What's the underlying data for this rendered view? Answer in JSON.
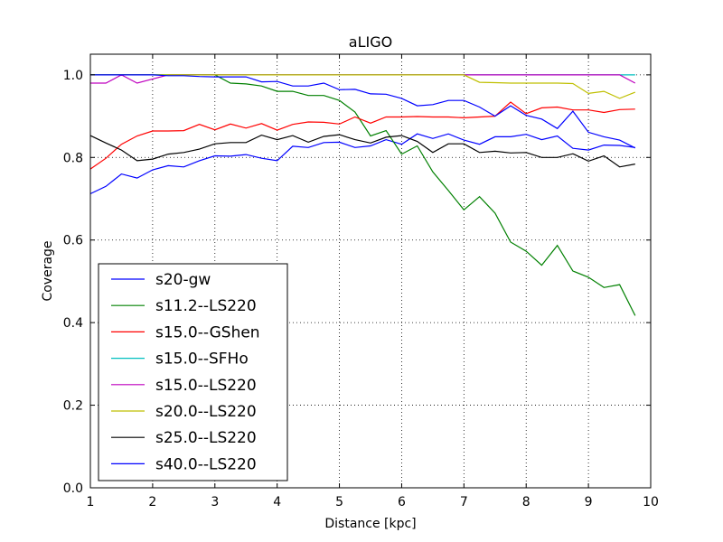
{
  "chart_data": {
    "type": "line",
    "title": "aLIGO",
    "xlabel": "Distance [kpc]",
    "ylabel": "Coverage",
    "xlim": [
      1,
      10
    ],
    "ylim": [
      0,
      1.05
    ],
    "xticks": [
      1,
      2,
      3,
      4,
      5,
      6,
      7,
      8,
      9,
      10
    ],
    "xtick_labels": [
      "1",
      "2",
      "3",
      "4",
      "5",
      "6",
      "7",
      "8",
      "9",
      "10"
    ],
    "yticks": [
      0,
      0.2,
      0.4,
      0.6,
      0.8,
      1.0
    ],
    "ytick_labels": [
      "0.0",
      "0.2",
      "0.4",
      "0.6",
      "0.8",
      "1.0"
    ],
    "grid": true,
    "legend_position": "lower-left",
    "x": [
      1.0,
      1.25,
      1.5,
      1.75,
      2.0,
      2.25,
      2.5,
      2.75,
      3.0,
      3.25,
      3.5,
      3.75,
      4.0,
      4.25,
      4.5,
      4.75,
      5.0,
      5.25,
      5.5,
      5.75,
      6.0,
      6.25,
      6.5,
      6.75,
      7.0,
      7.25,
      7.5,
      7.75,
      8.0,
      8.25,
      8.5,
      8.75,
      9.0,
      9.25,
      9.5,
      9.75
    ],
    "series": [
      {
        "name": "s20-gw",
        "color": "#0000ff",
        "values": [
          0.712,
          0.73,
          0.76,
          0.75,
          0.77,
          0.78,
          0.777,
          0.792,
          0.804,
          0.803,
          0.807,
          0.798,
          0.792,
          0.827,
          0.824,
          0.836,
          0.837,
          0.824,
          0.828,
          0.843,
          0.832,
          0.857,
          0.846,
          0.857,
          0.842,
          0.832,
          0.85,
          0.85,
          0.856,
          0.843,
          0.852,
          0.822,
          0.818,
          0.83,
          0.829,
          0.824
        ]
      },
      {
        "name": "s11.2--LS220",
        "color": "#008000",
        "values": [
          1.0,
          1.0,
          1.0,
          1.0,
          1.0,
          1.0,
          1.0,
          1.0,
          1.0,
          0.98,
          0.978,
          0.973,
          0.96,
          0.96,
          0.95,
          0.95,
          0.938,
          0.91,
          0.852,
          0.865,
          0.808,
          0.828,
          0.765,
          0.72,
          0.673,
          0.705,
          0.665,
          0.595,
          0.573,
          0.539,
          0.587,
          0.525,
          0.51,
          0.485,
          0.492,
          0.417
        ]
      },
      {
        "name": "s15.0--GShen",
        "color": "#ff0000",
        "values": [
          0.772,
          0.798,
          0.832,
          0.852,
          0.864,
          0.864,
          0.865,
          0.88,
          0.867,
          0.881,
          0.871,
          0.882,
          0.866,
          0.88,
          0.886,
          0.885,
          0.881,
          0.898,
          0.883,
          0.898,
          0.898,
          0.899,
          0.898,
          0.898,
          0.896,
          0.898,
          0.9,
          0.934,
          0.906,
          0.92,
          0.922,
          0.915,
          0.915,
          0.909,
          0.916,
          0.917
        ]
      },
      {
        "name": "s15.0--SFHo",
        "color": "#00bfbf",
        "values": [
          1.0,
          1.0,
          1.0,
          1.0,
          1.0,
          1.0,
          1.0,
          1.0,
          1.0,
          1.0,
          1.0,
          1.0,
          1.0,
          1.0,
          1.0,
          1.0,
          1.0,
          1.0,
          1.0,
          1.0,
          1.0,
          1.0,
          1.0,
          1.0,
          1.0,
          1.0,
          1.0,
          1.0,
          1.0,
          1.0,
          1.0,
          1.0,
          1.0,
          1.0,
          1.0,
          1.0
        ]
      },
      {
        "name": "s15.0--LS220",
        "color": "#bf00bf",
        "values": [
          0.98,
          0.98,
          1.0,
          0.98,
          0.99,
          1.0,
          1.0,
          1.0,
          1.0,
          1.0,
          1.0,
          1.0,
          1.0,
          1.0,
          1.0,
          1.0,
          1.0,
          1.0,
          1.0,
          1.0,
          1.0,
          1.0,
          1.0,
          1.0,
          1.0,
          1.0,
          1.0,
          1.0,
          1.0,
          1.0,
          1.0,
          1.0,
          1.0,
          1.0,
          1.0,
          0.98
        ]
      },
      {
        "name": "s20.0--LS220",
        "color": "#bfbf00",
        "values": [
          1.0,
          1.0,
          1.0,
          1.0,
          1.0,
          1.0,
          1.0,
          1.0,
          1.0,
          1.0,
          1.0,
          1.0,
          1.0,
          1.0,
          1.0,
          1.0,
          1.0,
          1.0,
          1.0,
          1.0,
          1.0,
          1.0,
          1.0,
          1.0,
          1.0,
          0.982,
          0.981,
          0.98,
          0.98,
          0.98,
          0.98,
          0.979,
          0.955,
          0.96,
          0.943,
          0.958
        ]
      },
      {
        "name": "s25.0--LS220",
        "color": "#000000",
        "values": [
          0.853,
          0.835,
          0.818,
          0.792,
          0.796,
          0.808,
          0.812,
          0.82,
          0.833,
          0.836,
          0.836,
          0.854,
          0.843,
          0.853,
          0.837,
          0.851,
          0.855,
          0.843,
          0.835,
          0.849,
          0.853,
          0.839,
          0.812,
          0.833,
          0.833,
          0.812,
          0.815,
          0.811,
          0.812,
          0.8,
          0.8,
          0.809,
          0.791,
          0.804,
          0.777,
          0.784
        ]
      },
      {
        "name": "s40.0--LS220",
        "color": "#0000ff",
        "values": [
          1.0,
          1.0,
          1.0,
          1.0,
          1.0,
          0.998,
          0.998,
          0.996,
          0.995,
          0.995,
          0.995,
          0.983,
          0.984,
          0.973,
          0.973,
          0.98,
          0.964,
          0.965,
          0.954,
          0.953,
          0.943,
          0.925,
          0.928,
          0.938,
          0.938,
          0.922,
          0.9,
          0.925,
          0.902,
          0.893,
          0.87,
          0.912,
          0.861,
          0.85,
          0.842,
          0.823
        ]
      }
    ]
  }
}
